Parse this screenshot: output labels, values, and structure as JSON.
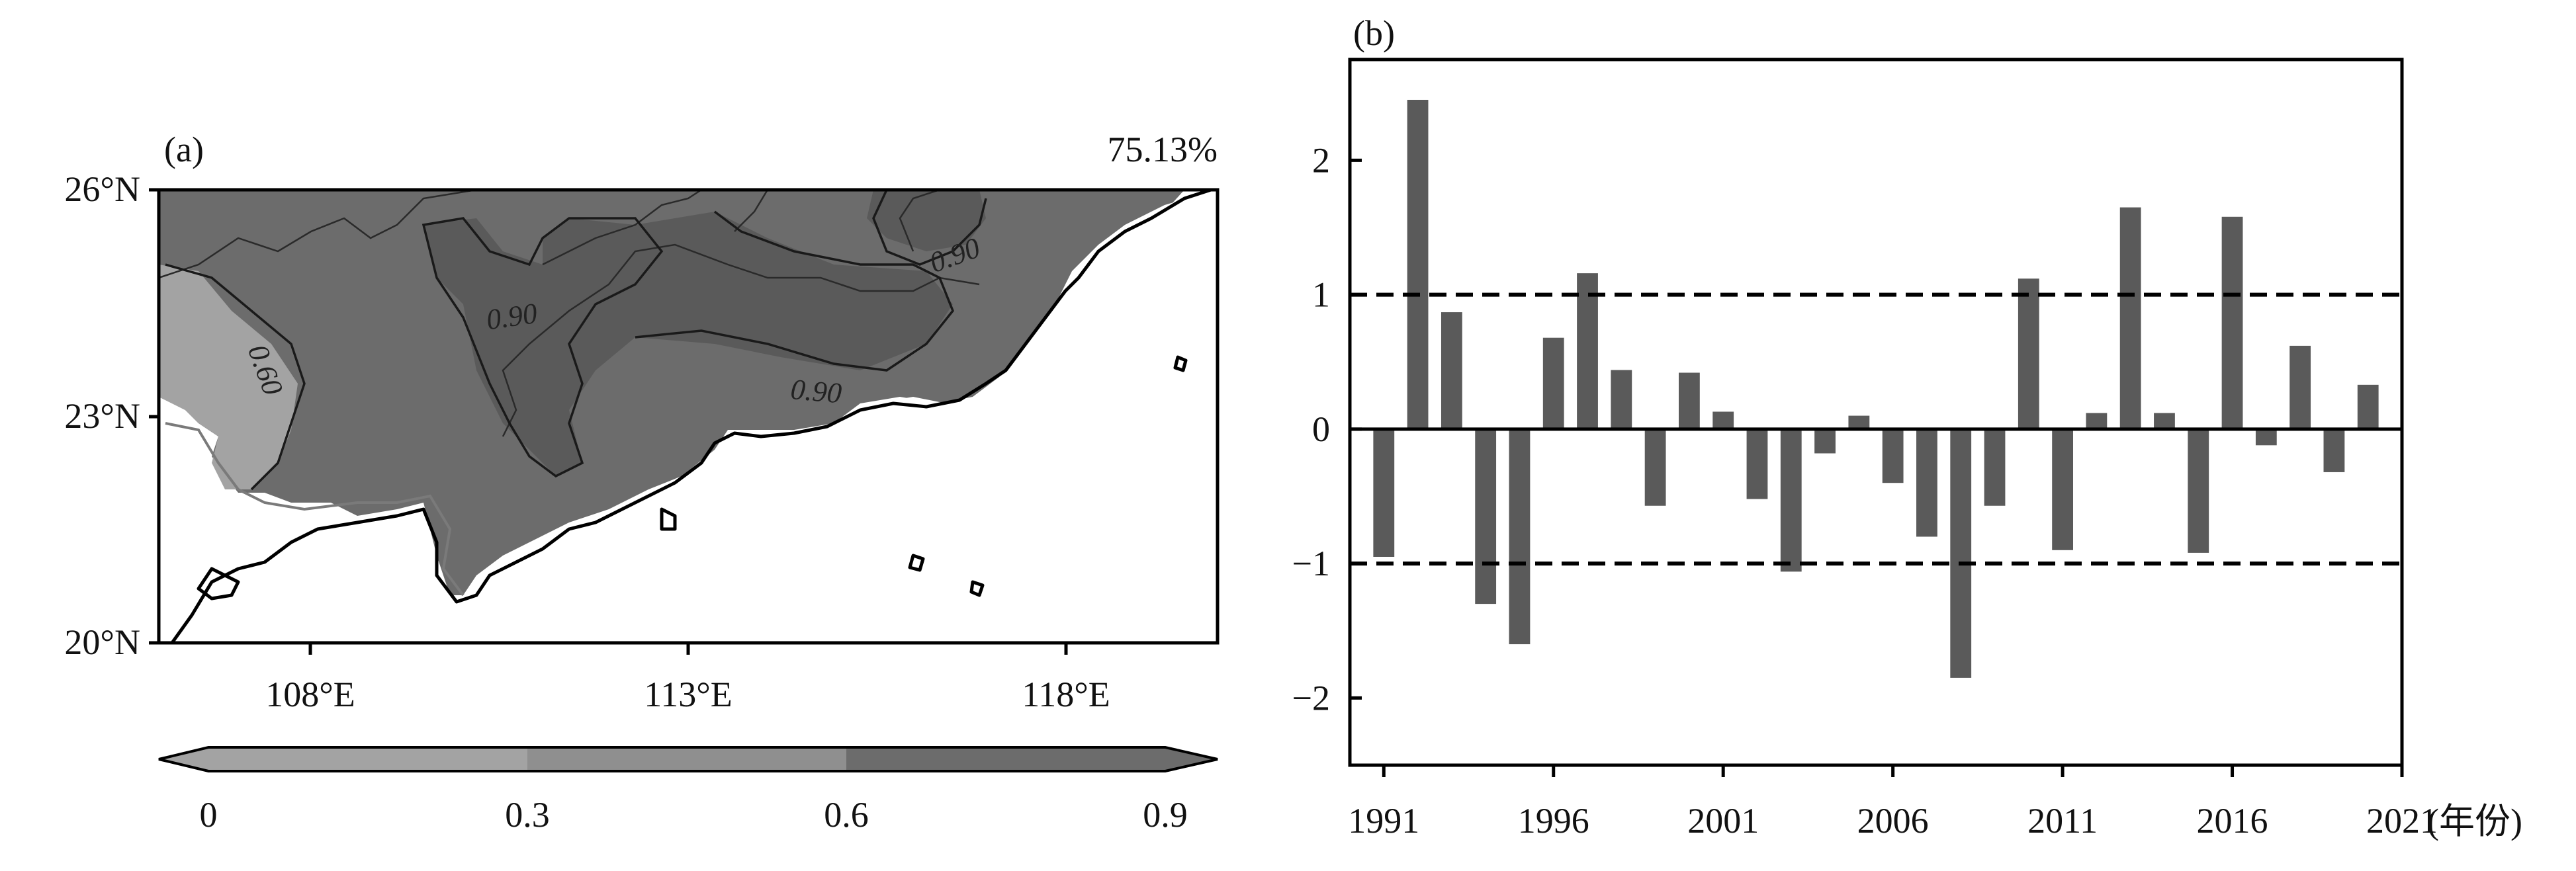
{
  "panel_a": {
    "label": "(a)",
    "percentage": "75.13%",
    "lat_ticks": [
      "26°N",
      "23°N",
      "20°N"
    ],
    "lon_ticks": [
      "108°E",
      "113°E",
      "118°E"
    ],
    "contour_labels": [
      "0.60",
      "0.90",
      "0.90",
      "0.90"
    ],
    "colorbar": {
      "ticks": [
        "0",
        "0.3",
        "0.6",
        "0.9"
      ],
      "colors": [
        "#a3a3a3",
        "#8f8f8f",
        "#6c6c6c"
      ]
    }
  },
  "panel_b": {
    "label": "(b)",
    "x_unit": "(年份)"
  },
  "chart_data": [
    {
      "type": "heatmap",
      "title": "",
      "xlabel": "",
      "ylabel": "",
      "xlim": [
        106,
        120
      ],
      "ylim": [
        20,
        26
      ],
      "x_ticks": [
        "108°E",
        "113°E",
        "118°E"
      ],
      "y_ticks": [
        "26°N",
        "23°N",
        "20°N"
      ],
      "annotation": "75.13%",
      "contour_levels": [
        0.6,
        0.9
      ],
      "colorbar_levels": [
        0,
        0.3,
        0.6,
        0.9
      ],
      "colorbar_extend": "both"
    },
    {
      "type": "bar",
      "xlabel": "(年份)",
      "ylabel": "",
      "categories": [
        1991,
        1992,
        1993,
        1994,
        1995,
        1996,
        1997,
        1998,
        1999,
        2000,
        2001,
        2002,
        2003,
        2004,
        2005,
        2006,
        2007,
        2008,
        2009,
        2010,
        2011,
        2012,
        2013,
        2014,
        2015,
        2016,
        2017,
        2018,
        2019,
        2020
      ],
      "values": [
        -0.95,
        2.45,
        0.87,
        -1.3,
        -1.6,
        0.68,
        1.16,
        0.44,
        -0.57,
        0.42,
        0.13,
        -0.52,
        -1.06,
        -0.18,
        0.1,
        -0.4,
        -0.8,
        -1.85,
        -0.57,
        1.12,
        -0.9,
        0.12,
        1.65,
        0.12,
        -0.92,
        1.58,
        -0.12,
        0.62,
        -0.32,
        0.33
      ],
      "xlim": [
        1990,
        2021
      ],
      "ylim": [
        -2.5,
        2.75
      ],
      "x_ticks": [
        "1991",
        "1996",
        "2001",
        "2006",
        "2011",
        "2016",
        "2021"
      ],
      "y_ticks": [
        "2",
        "1",
        "0",
        "−1",
        "−2"
      ],
      "reference_lines": [
        1,
        0,
        -1
      ],
      "bar_color": "#5a5a5a"
    }
  ]
}
